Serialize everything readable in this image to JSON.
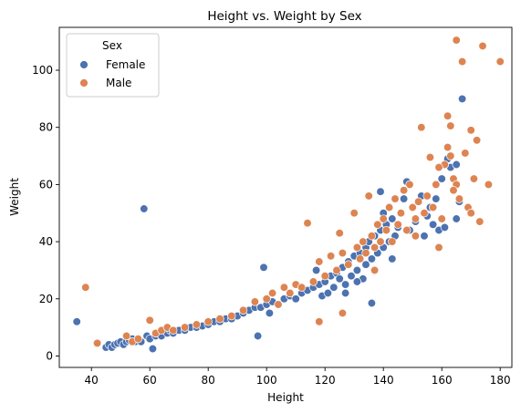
{
  "chart_data": {
    "type": "scatter",
    "title": "Height vs. Weight by Sex",
    "xlabel": "Height",
    "ylabel": "Weight",
    "xlim": [
      29,
      184
    ],
    "ylim": [
      -4,
      115
    ],
    "xticks": [
      40,
      60,
      80,
      100,
      120,
      140,
      160,
      180
    ],
    "yticks": [
      0,
      20,
      40,
      60,
      80,
      100
    ],
    "grid": false,
    "legend": {
      "title": "Sex",
      "placement": "top-left",
      "entries": [
        "Female",
        "Male"
      ]
    },
    "series": [
      {
        "name": "Female",
        "color": "#4c72b0",
        "points": [
          [
            35,
            12
          ],
          [
            45,
            3
          ],
          [
            46,
            4
          ],
          [
            47,
            3
          ],
          [
            48,
            4
          ],
          [
            49,
            4.5
          ],
          [
            50,
            5
          ],
          [
            51,
            4
          ],
          [
            52,
            5
          ],
          [
            53,
            5.5
          ],
          [
            54,
            6
          ],
          [
            55,
            5
          ],
          [
            56,
            6
          ],
          [
            57,
            5
          ],
          [
            58,
            51.5
          ],
          [
            59,
            7
          ],
          [
            60,
            6
          ],
          [
            61,
            2.5
          ],
          [
            62,
            7
          ],
          [
            63,
            8
          ],
          [
            64,
            7
          ],
          [
            65,
            9
          ],
          [
            66,
            8
          ],
          [
            67,
            9
          ],
          [
            68,
            8
          ],
          [
            70,
            9
          ],
          [
            72,
            9
          ],
          [
            74,
            10
          ],
          [
            76,
            10
          ],
          [
            78,
            10.5
          ],
          [
            80,
            11
          ],
          [
            82,
            12
          ],
          [
            84,
            12
          ],
          [
            86,
            13
          ],
          [
            88,
            13
          ],
          [
            90,
            14
          ],
          [
            92,
            15
          ],
          [
            94,
            16
          ],
          [
            96,
            17
          ],
          [
            97,
            7
          ],
          [
            98,
            17
          ],
          [
            99,
            31
          ],
          [
            100,
            18
          ],
          [
            101,
            15
          ],
          [
            102,
            19
          ],
          [
            104,
            18
          ],
          [
            106,
            20
          ],
          [
            108,
            21
          ],
          [
            110,
            20
          ],
          [
            112,
            22
          ],
          [
            114,
            23
          ],
          [
            116,
            24
          ],
          [
            117,
            30
          ],
          [
            118,
            25
          ],
          [
            119,
            21
          ],
          [
            120,
            26
          ],
          [
            121,
            22
          ],
          [
            122,
            28
          ],
          [
            123,
            24
          ],
          [
            124,
            29
          ],
          [
            125,
            27
          ],
          [
            126,
            31
          ],
          [
            127,
            25
          ],
          [
            128,
            33
          ],
          [
            129,
            28
          ],
          [
            130,
            35
          ],
          [
            131,
            30
          ],
          [
            132,
            36
          ],
          [
            133,
            27
          ],
          [
            134,
            38
          ],
          [
            134,
            32
          ],
          [
            135,
            40
          ],
          [
            136,
            34
          ],
          [
            136,
            18.5
          ],
          [
            137,
            42
          ],
          [
            138,
            36
          ],
          [
            139,
            57.5
          ],
          [
            139,
            44
          ],
          [
            140,
            38
          ],
          [
            140,
            50
          ],
          [
            141,
            46
          ],
          [
            142,
            40
          ],
          [
            143,
            48
          ],
          [
            144,
            42
          ],
          [
            145,
            45
          ],
          [
            146,
            50
          ],
          [
            147,
            55
          ],
          [
            148,
            61
          ],
          [
            149,
            44
          ],
          [
            150,
            52
          ],
          [
            151,
            47
          ],
          [
            152,
            54
          ],
          [
            153,
            56
          ],
          [
            154,
            42
          ],
          [
            155,
            49
          ],
          [
            156,
            52
          ],
          [
            158,
            55
          ],
          [
            159,
            44
          ],
          [
            160,
            62
          ],
          [
            161,
            45
          ],
          [
            162,
            69
          ],
          [
            163,
            66
          ],
          [
            165,
            67
          ],
          [
            165,
            48
          ],
          [
            167,
            90
          ],
          [
            166,
            54
          ],
          [
            157,
            46
          ],
          [
            143,
            34
          ],
          [
            131,
            26
          ],
          [
            127,
            22
          ]
        ]
      },
      {
        "name": "Male",
        "color": "#dd8452",
        "points": [
          [
            38,
            24
          ],
          [
            42,
            4.5
          ],
          [
            52,
            7
          ],
          [
            54,
            5
          ],
          [
            56,
            6
          ],
          [
            60,
            12.5
          ],
          [
            62,
            8
          ],
          [
            64,
            9
          ],
          [
            66,
            10
          ],
          [
            68,
            9
          ],
          [
            72,
            10
          ],
          [
            76,
            11
          ],
          [
            80,
            12
          ],
          [
            84,
            13
          ],
          [
            88,
            14
          ],
          [
            92,
            16
          ],
          [
            96,
            19
          ],
          [
            100,
            20
          ],
          [
            102,
            22
          ],
          [
            104,
            18
          ],
          [
            106,
            24
          ],
          [
            108,
            22
          ],
          [
            110,
            25
          ],
          [
            112,
            24
          ],
          [
            114,
            46.5
          ],
          [
            116,
            26
          ],
          [
            118,
            12
          ],
          [
            118,
            33
          ],
          [
            120,
            28
          ],
          [
            122,
            35
          ],
          [
            124,
            30
          ],
          [
            125,
            43
          ],
          [
            126,
            15
          ],
          [
            126,
            36
          ],
          [
            128,
            32
          ],
          [
            130,
            50
          ],
          [
            131,
            38
          ],
          [
            132,
            34
          ],
          [
            133,
            40
          ],
          [
            134,
            36
          ],
          [
            135,
            56
          ],
          [
            136,
            42
          ],
          [
            137,
            38
          ],
          [
            138,
            46
          ],
          [
            139,
            40
          ],
          [
            140,
            48
          ],
          [
            141,
            44
          ],
          [
            142,
            52
          ],
          [
            143,
            40
          ],
          [
            144,
            55
          ],
          [
            145,
            46
          ],
          [
            146,
            50
          ],
          [
            147,
            58
          ],
          [
            148,
            44
          ],
          [
            149,
            60
          ],
          [
            150,
            52
          ],
          [
            151,
            48
          ],
          [
            152,
            54
          ],
          [
            153,
            80
          ],
          [
            154,
            50
          ],
          [
            155,
            56
          ],
          [
            156,
            69.5
          ],
          [
            157,
            52
          ],
          [
            158,
            60
          ],
          [
            159,
            38
          ],
          [
            160,
            48
          ],
          [
            161,
            67
          ],
          [
            162,
            84
          ],
          [
            162,
            73
          ],
          [
            163,
            70
          ],
          [
            164,
            62
          ],
          [
            165,
            110.5
          ],
          [
            165,
            60
          ],
          [
            166,
            55
          ],
          [
            167,
            103
          ],
          [
            168,
            71
          ],
          [
            169,
            52
          ],
          [
            170,
            79
          ],
          [
            171,
            62
          ],
          [
            172,
            75.5
          ],
          [
            173,
            47
          ],
          [
            174,
            108.5
          ],
          [
            176,
            60
          ],
          [
            180,
            103
          ],
          [
            170,
            50
          ],
          [
            159,
            66
          ],
          [
            163,
            80.5
          ],
          [
            164,
            58
          ],
          [
            151,
            42
          ],
          [
            137,
            30
          ]
        ]
      }
    ]
  }
}
